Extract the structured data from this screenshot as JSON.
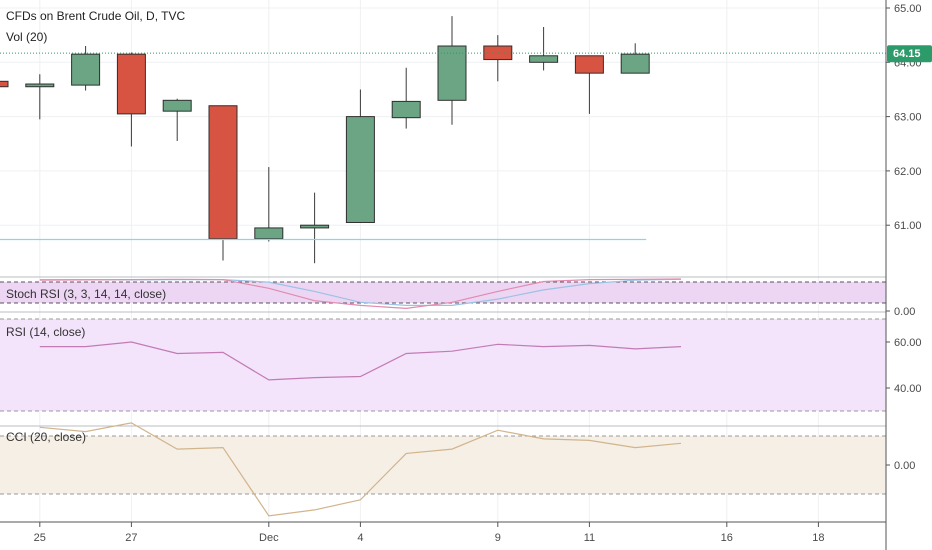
{
  "header": {
    "title": "CFDs on Brent Crude Oil, D, TVC",
    "volume_label": "Vol (20)"
  },
  "price_badge": "64.15",
  "chart_data": {
    "type": "candlestick",
    "x_tick_labels": [
      "25",
      "27",
      "Dec",
      "4",
      "9",
      "11",
      "16",
      "18"
    ],
    "price_axis": {
      "ylim": [
        60.0,
        65.1
      ],
      "tick_labels": [
        "65.00",
        "64.00",
        "63.00",
        "62.00",
        "61.00"
      ],
      "tick_values": [
        65,
        64,
        63,
        62,
        61
      ]
    },
    "last_price": 64.15,
    "candles": [
      {
        "o": 63.65,
        "h": 63.75,
        "l": 63.55,
        "c": 63.55,
        "dir": "down"
      },
      {
        "o": 63.55,
        "h": 63.78,
        "l": 62.95,
        "c": 63.6,
        "dir": "up"
      },
      {
        "o": 63.58,
        "h": 64.3,
        "l": 63.48,
        "c": 64.15,
        "dir": "up"
      },
      {
        "o": 64.15,
        "h": 64.18,
        "l": 62.45,
        "c": 63.05,
        "dir": "down"
      },
      {
        "o": 63.1,
        "h": 63.33,
        "l": 62.55,
        "c": 63.3,
        "dir": "up"
      },
      {
        "o": 63.2,
        "h": 63.2,
        "l": 60.35,
        "c": 60.75,
        "dir": "down"
      },
      {
        "o": 60.75,
        "h": 62.07,
        "l": 60.7,
        "c": 60.95,
        "dir": "up"
      },
      {
        "o": 60.95,
        "h": 61.6,
        "l": 60.3,
        "c": 61.0,
        "dir": "up"
      },
      {
        "o": 61.05,
        "h": 63.5,
        "l": 61.05,
        "c": 63.0,
        "dir": "up"
      },
      {
        "o": 62.98,
        "h": 63.9,
        "l": 62.78,
        "c": 63.28,
        "dir": "up"
      },
      {
        "o": 63.3,
        "h": 64.85,
        "l": 62.85,
        "c": 64.3,
        "dir": "up"
      },
      {
        "o": 64.3,
        "h": 64.5,
        "l": 63.65,
        "c": 64.05,
        "dir": "down"
      },
      {
        "o": 64.0,
        "h": 64.65,
        "l": 63.85,
        "c": 64.12,
        "dir": "up"
      },
      {
        "o": 64.12,
        "h": 64.12,
        "l": 63.05,
        "c": 63.8,
        "dir": "down"
      },
      {
        "o": 63.8,
        "h": 64.35,
        "l": 63.8,
        "c": 64.15,
        "dir": "up"
      }
    ],
    "stoch_rsi": {
      "label": "Stoch RSI (3, 3, 14, 14, close)",
      "tick_labels": [
        "0.00"
      ],
      "k": [
        96,
        97,
        98,
        99,
        98,
        70,
        30,
        15,
        5,
        25,
        60,
        92,
        98,
        99,
        100
      ],
      "d": [
        98,
        98,
        97,
        98,
        98,
        90,
        60,
        25,
        15,
        15,
        35,
        65,
        85,
        96,
        99
      ]
    },
    "rsi": {
      "label": "RSI (14, close)",
      "tick_labels": [
        "60.00",
        "40.00"
      ],
      "tick_values": [
        60,
        40
      ],
      "band": [
        30,
        70
      ],
      "ylim": [
        25,
        75
      ],
      "values": [
        58.0,
        58.0,
        60.0,
        55.0,
        55.5,
        43.5,
        44.5,
        45.0,
        55.0,
        56.0,
        59.0,
        58.0,
        58.5,
        57.0,
        58.0
      ]
    },
    "cci": {
      "label": "CCI (20, close)",
      "tick_labels": [
        "0.00"
      ],
      "tick_values": [
        0
      ],
      "band": [
        -100,
        100
      ],
      "ylim": [
        -200,
        150
      ],
      "values": [
        130,
        115,
        145,
        55,
        60,
        -175,
        -155,
        -120,
        40,
        55,
        120,
        90,
        85,
        60,
        75
      ]
    }
  },
  "colors": {
    "up": "#6ba583",
    "down": "#d75442",
    "stoch_k": "#e28ab0",
    "stoch_d": "#9bc2e4",
    "stoch_fill": "#ecd6f3",
    "rsi_line": "#c27bb4",
    "rsi_fill": "#f3e3fb",
    "cci_line": "#d2b48c",
    "cci_fill": "#f5efe6",
    "last_price": "#2d9a6a",
    "horizontal_line": "#8fd1ee"
  }
}
